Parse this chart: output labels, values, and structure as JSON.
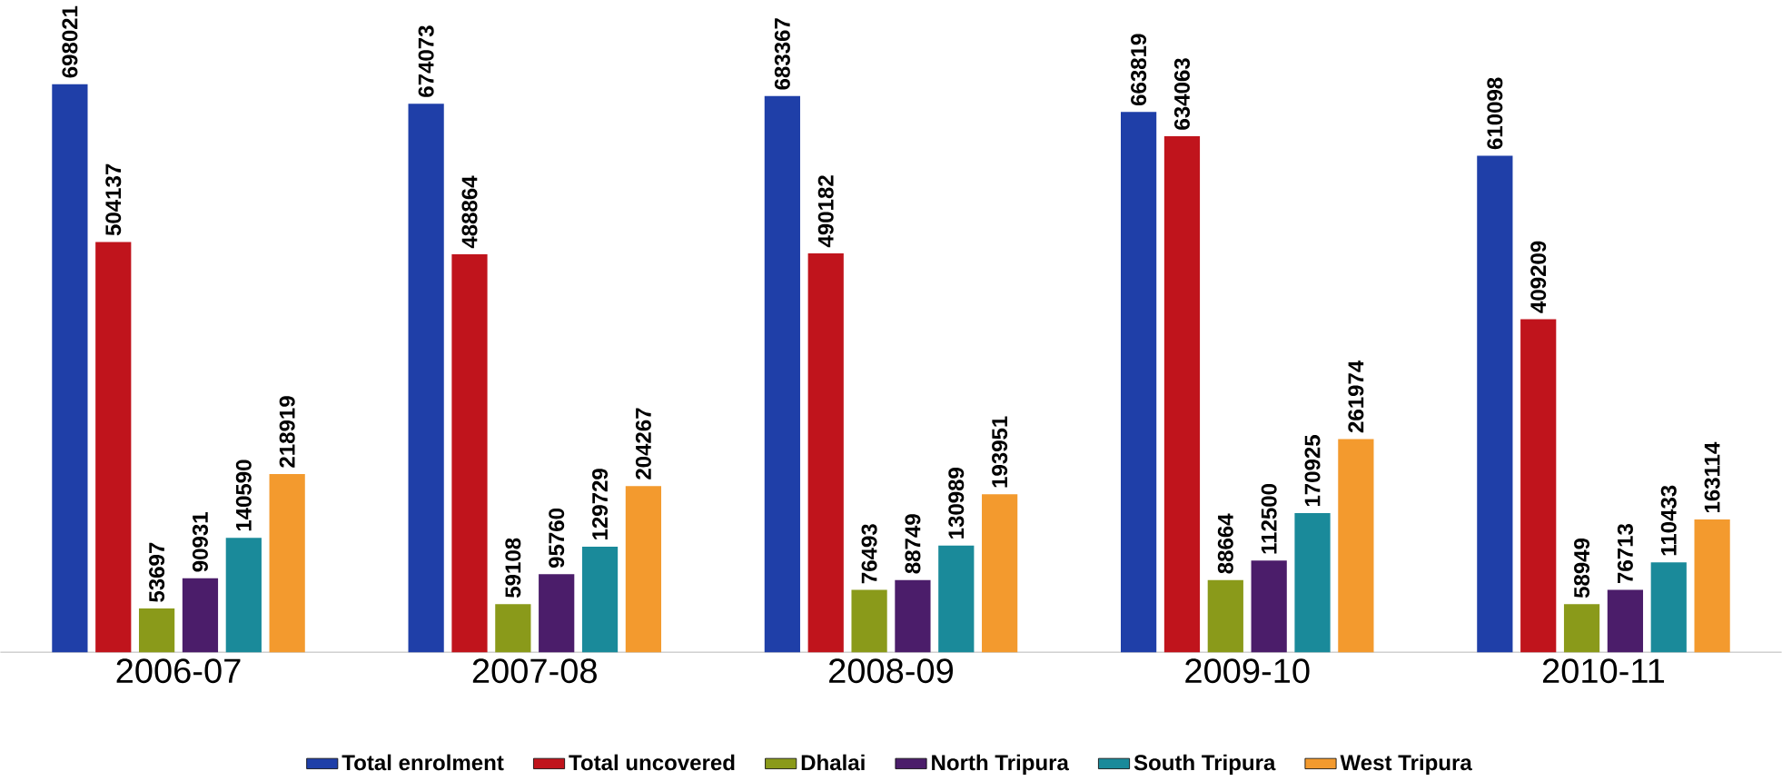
{
  "chart_data": {
    "type": "bar",
    "categories": [
      "2006-07",
      "2007-08",
      "2008-09",
      "2009-10",
      "2010-11"
    ],
    "series": [
      {
        "name": "Total enrolment",
        "color": "#1f3fa8",
        "values": [
          698021,
          674073,
          683367,
          663819,
          610098
        ]
      },
      {
        "name": "Total uncovered",
        "color": "#c0141c",
        "values": [
          504137,
          488864,
          490182,
          634063,
          409209
        ]
      },
      {
        "name": "Dhalai",
        "color": "#8a9a1a",
        "values": [
          53697,
          59108,
          76493,
          88664,
          58949
        ]
      },
      {
        "name": "North Tripura",
        "color": "#4b1d6a",
        "values": [
          90931,
          95760,
          88749,
          112500,
          76713
        ]
      },
      {
        "name": "South Tripura",
        "color": "#1a8a9a",
        "values": [
          140590,
          129729,
          130989,
          170925,
          110433
        ]
      },
      {
        "name": "West Tripura",
        "color": "#f39a2e",
        "values": [
          218919,
          204267,
          193951,
          261974,
          163114
        ]
      }
    ],
    "data_labels": true,
    "legend": "bottom",
    "grid": false
  }
}
